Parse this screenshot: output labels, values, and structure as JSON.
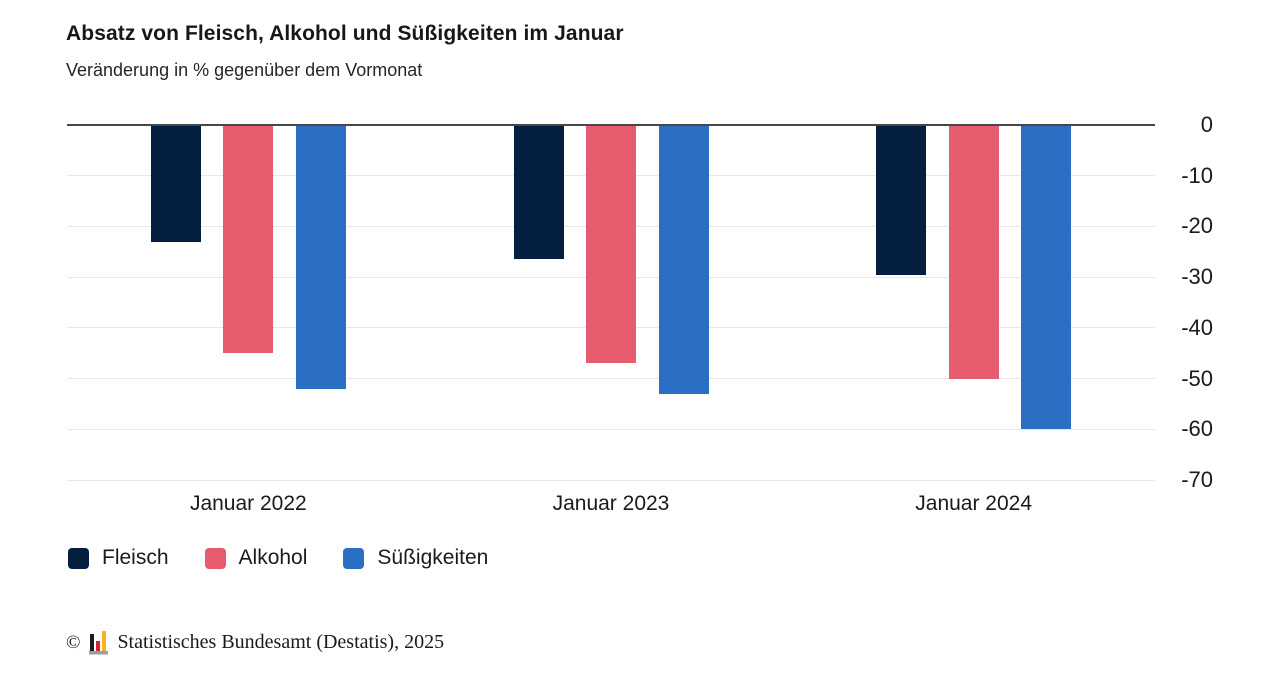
{
  "chart_data": {
    "type": "bar",
    "title": "Absatz von Fleisch, Alkohol und Süßigkeiten im Januar",
    "subtitle": "Veränderung in % gegenüber dem Vormonat",
    "categories": [
      "Januar 2022",
      "Januar 2023",
      "Januar 2024"
    ],
    "series": [
      {
        "name": "Fleisch",
        "slug": "fleisch",
        "color": "#041e3f",
        "values": [
          -23,
          -26.5,
          -29.5
        ]
      },
      {
        "name": "Alkohol",
        "slug": "alkohol",
        "color": "#e45c6e",
        "values": [
          -45,
          -47,
          -50
        ]
      },
      {
        "name": "Süßigkeiten",
        "slug": "suessigkeiten",
        "color": "#2b6fc5",
        "values": [
          -52,
          -53,
          -60
        ]
      }
    ],
    "yticks": [
      0,
      -10,
      -20,
      -30,
      -40,
      -50,
      -60,
      -70
    ],
    "ylim": [
      -70,
      0
    ],
    "y_tick_side": "right",
    "grid": true,
    "zero_line": true,
    "legend_position": "bottom-left"
  },
  "footer": {
    "copyright_symbol": "©",
    "source": "Statistisches Bundesamt (Destatis), 2025",
    "logo": {
      "icon_name": "destatis-bar-chart-logo",
      "black": "#1d1d1b",
      "red": "#d2232e",
      "yellow": "#f6b221",
      "base": "#9c9c9c"
    }
  }
}
